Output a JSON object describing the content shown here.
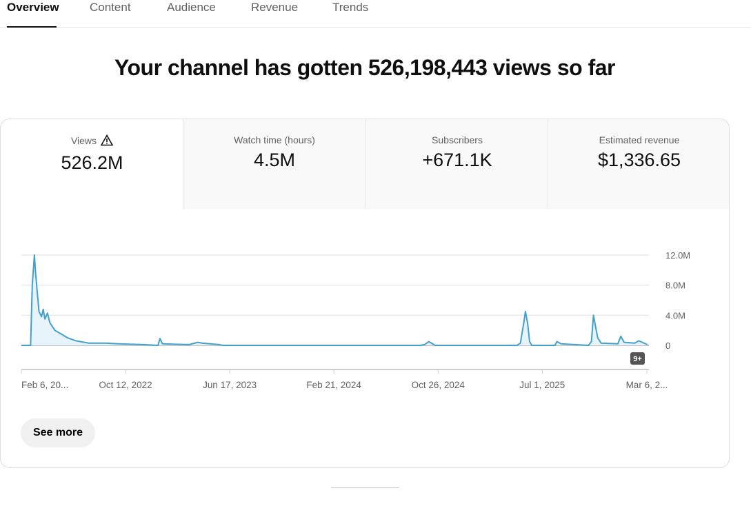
{
  "tabs": [
    "Overview",
    "Content",
    "Audience",
    "Revenue",
    "Trends"
  ],
  "headline": "Your channel has gotten 526,198,443 views so far",
  "metrics": [
    {
      "label": "Views",
      "value": "526.2M",
      "icon": "warning-icon"
    },
    {
      "label": "Watch time (hours)",
      "value": "4.5M"
    },
    {
      "label": "Subscribers",
      "value": "+671.1K"
    },
    {
      "label": "Estimated revenue",
      "value": "$1,336.65"
    }
  ],
  "see_more": "See more",
  "badge": "9+",
  "colors": {
    "line": "#41a0cc",
    "fill": "#e6f3fa"
  },
  "chart_data": {
    "type": "line",
    "series_name": "Views",
    "x_unit": "days since Feb 6, 2022",
    "y_unit": "millions",
    "ylim": [
      0,
      12
    ],
    "y_ticks": [
      "0",
      "4.0M",
      "8.0M",
      "12.0M"
    ],
    "x_ticks": [
      "Feb 6, 20...",
      "Oct 12, 2022",
      "Jun 17, 2023",
      "Feb 21, 2024",
      "Oct 26, 2024",
      "Jul 1, 2025",
      "Mar 6, 2..."
    ],
    "x_tick_days": [
      0,
      248,
      496,
      744,
      992,
      1240,
      1489
    ],
    "points": [
      [
        0,
        0
      ],
      [
        22,
        0
      ],
      [
        26,
        8
      ],
      [
        31,
        12
      ],
      [
        34,
        9.5
      ],
      [
        38,
        7
      ],
      [
        42,
        4.5
      ],
      [
        48,
        3.8
      ],
      [
        52,
        4.8
      ],
      [
        56,
        3.5
      ],
      [
        62,
        4.3
      ],
      [
        68,
        3
      ],
      [
        80,
        2
      ],
      [
        95,
        1.5
      ],
      [
        110,
        1
      ],
      [
        130,
        0.6
      ],
      [
        160,
        0.3
      ],
      [
        200,
        0.3
      ],
      [
        230,
        0.2
      ],
      [
        290,
        0.1
      ],
      [
        325,
        0
      ],
      [
        330,
        0.9
      ],
      [
        336,
        0.2
      ],
      [
        400,
        0.1
      ],
      [
        420,
        0.4
      ],
      [
        430,
        0.3
      ],
      [
        470,
        0.1
      ],
      [
        480,
        0
      ],
      [
        950,
        0
      ],
      [
        960,
        0.1
      ],
      [
        970,
        0.5
      ],
      [
        985,
        0
      ],
      [
        1180,
        0
      ],
      [
        1188,
        0.3
      ],
      [
        1196,
        3
      ],
      [
        1200,
        4.5
      ],
      [
        1205,
        3
      ],
      [
        1210,
        0.5
      ],
      [
        1215,
        0
      ],
      [
        1270,
        0
      ],
      [
        1275,
        0.5
      ],
      [
        1285,
        0.2
      ],
      [
        1350,
        0
      ],
      [
        1357,
        0.5
      ],
      [
        1362,
        4
      ],
      [
        1367,
        2.5
      ],
      [
        1372,
        1
      ],
      [
        1380,
        0.3
      ],
      [
        1420,
        0.2
      ],
      [
        1427,
        1.2
      ],
      [
        1435,
        0.4
      ],
      [
        1460,
        0.3
      ],
      [
        1470,
        0.6
      ],
      [
        1490,
        0.1
      ]
    ]
  }
}
